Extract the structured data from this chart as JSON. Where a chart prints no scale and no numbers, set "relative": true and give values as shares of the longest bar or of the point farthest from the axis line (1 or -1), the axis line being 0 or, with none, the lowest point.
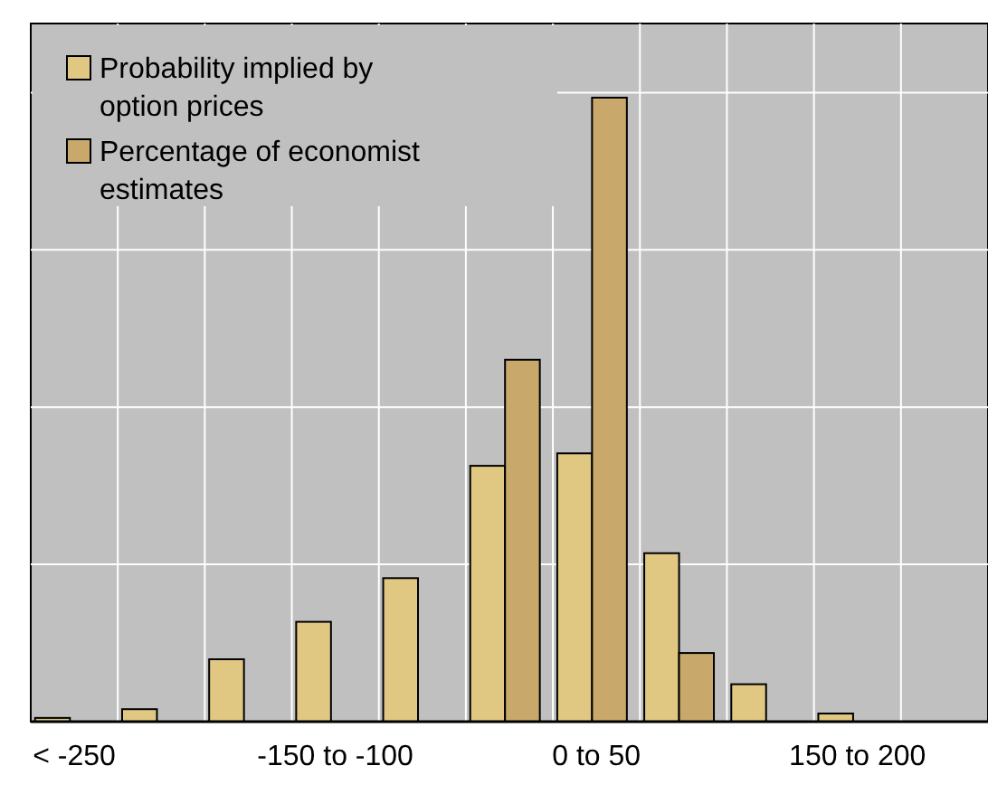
{
  "chart_data": {
    "type": "bar",
    "relative": true,
    "grid": true,
    "legend": "top left",
    "categories": [
      "< -250",
      null,
      null,
      "-150 to -100",
      null,
      null,
      "0 to 50",
      null,
      null,
      "150 to 200",
      null
    ],
    "series": [
      {
        "name": "Probability implied by option prices",
        "color": "#e0c883",
        "values": [
          0.006,
          0.02,
          0.1,
          0.16,
          0.23,
          0.41,
          0.43,
          0.27,
          0.06,
          0.013,
          0
        ]
      },
      {
        "name": "Percentage of economist estimates",
        "color": "#c8a96b",
        "values": [
          0,
          0,
          0,
          0,
          0,
          0.58,
          1,
          0.11,
          0,
          0,
          0
        ]
      }
    ]
  }
}
